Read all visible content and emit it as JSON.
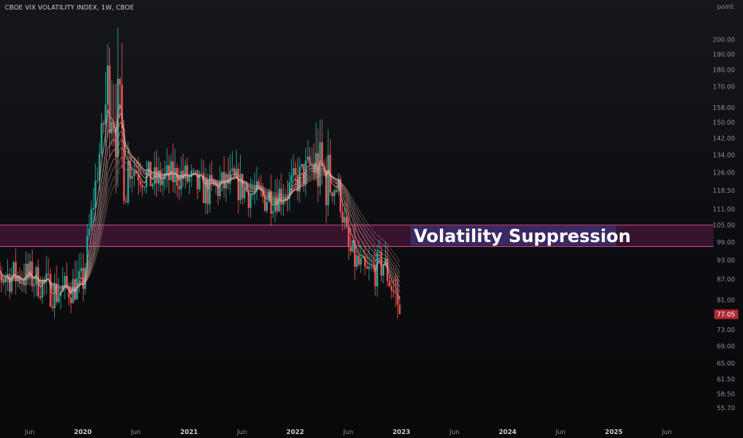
{
  "chart_data": {
    "type": "candlestick",
    "title": "CBOE VIX VOLATILITY INDEX, 1W, CBOE",
    "unit_label": "point",
    "y_ticks": [
      200.0,
      190.0,
      180.0,
      170.0,
      158.0,
      150.0,
      142.0,
      134.0,
      126.0,
      118.5,
      111.0,
      105.0,
      99.0,
      93.0,
      87.0,
      81.0,
      73.0,
      69.0,
      65.0,
      61.5,
      58.5,
      55.7
    ],
    "y_tick_labels": [
      "200.00",
      "190.00",
      "180.00",
      "170.00",
      "158.00",
      "150.00",
      "142.00",
      "134.00",
      "126.00",
      "118.50",
      "111.00",
      "105.00",
      "99.00",
      "93.00",
      "87.00",
      "81.00",
      "73.00",
      "69.00",
      "65.00",
      "61.50",
      "58.50",
      "55.70"
    ],
    "ylim": [
      53.0,
      217.0
    ],
    "y_scale": "log",
    "x_ticks": [
      {
        "label": "Jun",
        "year": false
      },
      {
        "label": "2020",
        "year": true
      },
      {
        "label": "Jun",
        "year": false
      },
      {
        "label": "2021",
        "year": true
      },
      {
        "label": "Jun",
        "year": false
      },
      {
        "label": "2022",
        "year": true
      },
      {
        "label": "Jun",
        "year": false
      },
      {
        "label": "2023",
        "year": true
      },
      {
        "label": "Jun",
        "year": false
      },
      {
        "label": "2024",
        "year": true
      },
      {
        "label": "Jun",
        "year": false
      },
      {
        "label": "2025",
        "year": true
      },
      {
        "label": "Jun",
        "year": false
      }
    ],
    "zone": {
      "low": 97.5,
      "high": 105.0,
      "label": "Volatility Suppression"
    },
    "last_price": {
      "value": 77.05,
      "label": "77.05"
    },
    "colors": {
      "up": "#26a69a",
      "down": "#ef5350",
      "zone_fill": "#5c1a45",
      "zone_border": "#c0457e",
      "label_bg": "#3a2a66",
      "ribbon": "#d6a49a",
      "price_tag": "#b22833"
    },
    "key_points": [
      {
        "date": "2019-06",
        "close": 88
      },
      {
        "date": "2019-09",
        "close": 83
      },
      {
        "date": "2019-12",
        "close": 86
      },
      {
        "date": "2020-03",
        "close": 175
      },
      {
        "date": "2020-05",
        "close": 130
      },
      {
        "date": "2020-08",
        "close": 122
      },
      {
        "date": "2020-11",
        "close": 125
      },
      {
        "date": "2021-02",
        "close": 118
      },
      {
        "date": "2021-05",
        "close": 122
      },
      {
        "date": "2021-08",
        "close": 115
      },
      {
        "date": "2021-11",
        "close": 118
      },
      {
        "date": "2022-02",
        "close": 130
      },
      {
        "date": "2022-05",
        "close": 118
      },
      {
        "date": "2022-06",
        "close": 96
      },
      {
        "date": "2022-08",
        "close": 88
      },
      {
        "date": "2022-10",
        "close": 92
      },
      {
        "date": "2022-12",
        "close": 77.05
      }
    ]
  }
}
